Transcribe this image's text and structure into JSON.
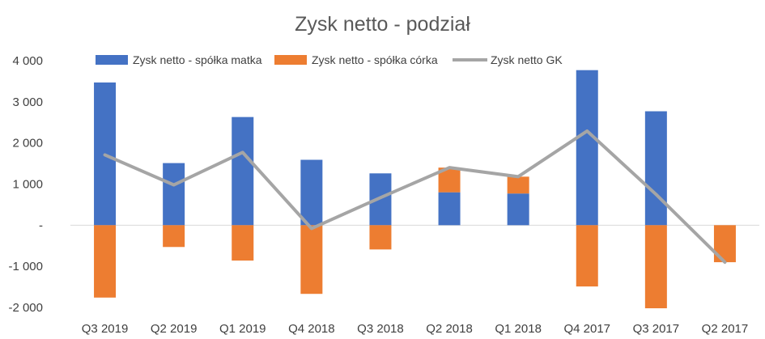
{
  "chart_data": {
    "type": "bar",
    "title": "Zysk netto - podział",
    "categories": [
      "Q3 2019",
      "Q2 2019",
      "Q1 2019",
      "Q4 2018",
      "Q3 2018",
      "Q2 2018",
      "Q1 2018",
      "Q4 2017",
      "Q3 2017",
      "Q2 2017"
    ],
    "y_ticks": [
      {
        "value": 4000,
        "label": "4 000"
      },
      {
        "value": 3000,
        "label": "3 000"
      },
      {
        "value": 2000,
        "label": "2 000"
      },
      {
        "value": 1000,
        "label": "1 000"
      },
      {
        "value": 0,
        "label": "-"
      },
      {
        "value": -1000,
        "label": "-1 000"
      },
      {
        "value": -2000,
        "label": "-2 000"
      }
    ],
    "ylim": [
      -2000,
      4000
    ],
    "grid": false,
    "legend_position": "top",
    "series": [
      {
        "name": "Zysk netto - spółka matka",
        "kind": "stacked-bar",
        "color": "#4472C4",
        "values": [
          3470,
          1510,
          2630,
          1590,
          1260,
          800,
          770,
          3770,
          2770,
          0
        ]
      },
      {
        "name": "Zysk netto - spółka córka",
        "kind": "stacked-bar",
        "color": "#ED7D31",
        "values": [
          -1760,
          -530,
          -860,
          -1670,
          -590,
          600,
          410,
          -1490,
          -2020,
          -900
        ]
      },
      {
        "name": "Zysk netto GK",
        "kind": "line",
        "color": "#A5A5A5",
        "values": [
          1710,
          980,
          1770,
          -80,
          670,
          1400,
          1180,
          2290,
          750,
          -900
        ]
      }
    ]
  }
}
